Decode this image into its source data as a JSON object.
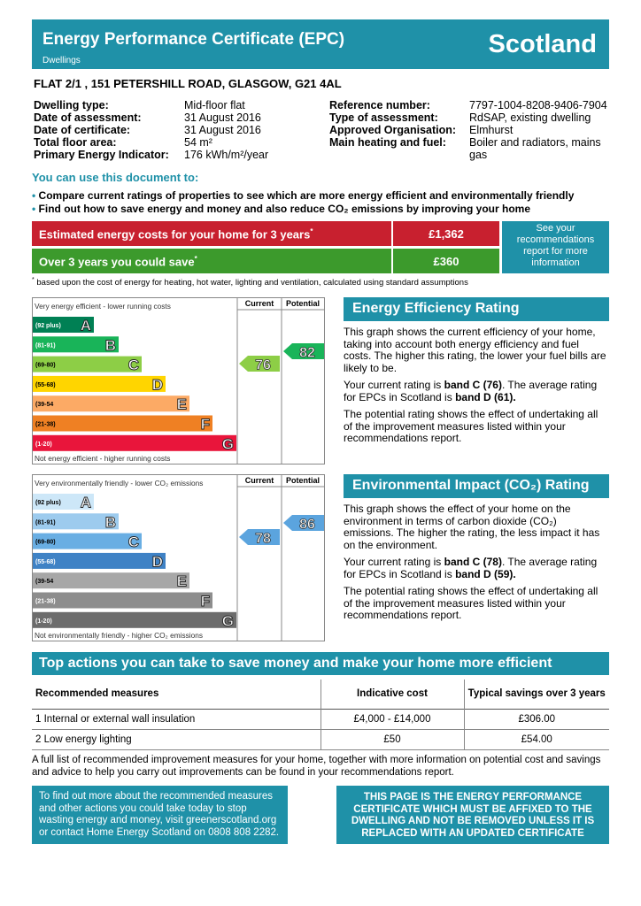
{
  "header": {
    "title": "Energy Performance Certificate (EPC)",
    "subtitle": "Dwellings",
    "region": "Scotland"
  },
  "address": "FLAT 2/1 , 151 PETERSHILL ROAD, GLASGOW, G21 4AL",
  "details_left": [
    {
      "label": "Dwelling type:",
      "value": "Mid-floor flat"
    },
    {
      "label": "Date of assessment:",
      "value": "31 August 2016"
    },
    {
      "label": "Date of certificate:",
      "value": "31 August 2016"
    },
    {
      "label": "Total floor area:",
      "value": "54 m²"
    },
    {
      "label": "Primary Energy Indicator:",
      "value": "176 kWh/m²/year"
    }
  ],
  "details_right": [
    {
      "label": "Reference number:",
      "value": "7797-1004-8208-9406-7904"
    },
    {
      "label": "Type of assessment:",
      "value": "RdSAP, existing dwelling"
    },
    {
      "label": "Approved Organisation:",
      "value": "Elmhurst"
    },
    {
      "label": "Main heating and fuel:",
      "value": "Boiler and radiators, mains gas"
    }
  ],
  "use_document": {
    "heading": "You can use this document to:",
    "bullets": [
      "Compare current ratings of properties to see which are more energy efficient and environmentally friendly",
      "Find out how to save energy and money and also reduce CO₂ emissions by improving your home"
    ]
  },
  "costs": {
    "rows": [
      {
        "label": "Estimated energy costs for your home for 3 years",
        "mark": "*",
        "value": "£1,362"
      },
      {
        "label": "Over 3 years you could save",
        "mark": "*",
        "value": "£360"
      }
    ],
    "side_note": "See your recommendations report for more information",
    "footnote_mark": "*",
    "footnote": " based upon the cost of energy for heating, hot water, lighting and ventilation, calculated using standard assumptions"
  },
  "eer": {
    "top_label": "Very energy efficient - lower running costs",
    "bottom_label": "Not energy efficient - higher running costs",
    "columns": [
      "Current",
      "Potential"
    ],
    "current": 76,
    "potential": 82,
    "bands": [
      {
        "range": "(92 plus)",
        "letter": "A",
        "color": "#008054"
      },
      {
        "range": "(81-91)",
        "letter": "B",
        "color": "#19b459"
      },
      {
        "range": "(69-80)",
        "letter": "C",
        "color": "#8dce46"
      },
      {
        "range": "(55-68)",
        "letter": "D",
        "color": "#ffd500"
      },
      {
        "range": "(39-54",
        "letter": "E",
        "color": "#fcaa65"
      },
      {
        "range": "(21-38)",
        "letter": "F",
        "color": "#ef8023"
      },
      {
        "range": "(1-20)",
        "letter": "G",
        "color": "#e9153b"
      }
    ],
    "current_color": "#8dce46",
    "potential_color": "#19b459",
    "heading": "Energy Efficiency Rating",
    "paragraphs": [
      [
        "This graph shows the current efficiency of your home, taking into account both energy efficiency and fuel costs. The higher this rating, the lower your fuel bills are likely to be."
      ],
      [
        "Your current rating is ",
        "band C (76)",
        ". The average rating for EPCs in Scotland is ",
        "band D (61)."
      ],
      [
        "The potential rating shows the effect of undertaking all of the improvement measures listed within your recommendations report."
      ]
    ]
  },
  "eir": {
    "top_label": "Very environmentally friendly - lower CO₂ emissions",
    "bottom_label": "Not environmentally friendly - higher CO₂ emissions",
    "columns": [
      "Current",
      "Potential"
    ],
    "current": 78,
    "potential": 86,
    "bands": [
      {
        "range": "(92 plus)",
        "letter": "A",
        "color": "#cde7f8"
      },
      {
        "range": "(81-91)",
        "letter": "B",
        "color": "#9dcbee"
      },
      {
        "range": "(69-80)",
        "letter": "C",
        "color": "#69aee3"
      },
      {
        "range": "(55-68)",
        "letter": "D",
        "color": "#3f82c5"
      },
      {
        "range": "(39-54",
        "letter": "E",
        "color": "#a7a7a7"
      },
      {
        "range": "(21-38)",
        "letter": "F",
        "color": "#8d8d8d"
      },
      {
        "range": "(1-20)",
        "letter": "G",
        "color": "#6c6c6c"
      }
    ],
    "current_color": "#5ba4de",
    "potential_color": "#5ba4de",
    "heading": "Environmental Impact (CO₂) Rating",
    "paragraphs": [
      [
        "This graph shows the effect of your home on the environment in terms of carbon dioxide (CO₂) emissions. The higher the rating, the less impact it has on the environment."
      ],
      [
        "Your current rating is ",
        "band C (78)",
        ". The average rating for EPCs in Scotland is ",
        "band D (59)."
      ],
      [
        "The potential rating shows the effect of undertaking all of the improvement measures listed within your recommendations report."
      ]
    ]
  },
  "actions": {
    "heading": "Top actions you can take to save money and make your home more efficient",
    "headers": [
      "Recommended measures",
      "Indicative cost",
      "Typical savings over 3 years"
    ],
    "rows": [
      [
        "1",
        "Internal or external wall insulation",
        "£4,000 - £14,000",
        "£306.00"
      ],
      [
        "2",
        "Low energy lighting",
        "£50",
        "£54.00"
      ]
    ],
    "note": "A full list of recommended improvement measures for your home, together with more information on potential cost and savings and advice to help you carry out improvements can be found in your recommendations report."
  },
  "footer": {
    "left": "To find out more about the recommended measures and other actions you could take today to stop wasting energy and money, visit greenerscotland.org or contact Home Energy Scotland on 0808 808 2282.",
    "right": "THIS PAGE IS THE ENERGY PERFORMANCE CERTIFICATE WHICH MUST BE AFFIXED TO THE DWELLING AND NOT BE REMOVED UNLESS IT IS REPLACED WITH AN UPDATED CERTIFICATE"
  }
}
